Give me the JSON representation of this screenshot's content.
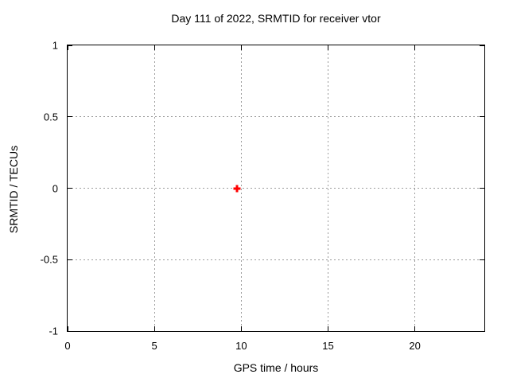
{
  "window": {
    "background": "#ffffff"
  },
  "chart_data": {
    "type": "scatter",
    "title": "Day 111 of 2022, SRMTID for receiver vtor",
    "xlabel": "GPS time / hours",
    "ylabel": "SRMTID / TECUs",
    "xlim": [
      0,
      24
    ],
    "ylim": [
      -1,
      1
    ],
    "xticks": [
      {
        "value": 0,
        "label": "0"
      },
      {
        "value": 5,
        "label": "5"
      },
      {
        "value": 10,
        "label": "10"
      },
      {
        "value": 15,
        "label": "15"
      },
      {
        "value": 20,
        "label": "20"
      }
    ],
    "yticks": [
      {
        "value": -1,
        "label": "-1"
      },
      {
        "value": -0.5,
        "label": "-0.5"
      },
      {
        "value": 0,
        "label": "0"
      },
      {
        "value": 0.5,
        "label": "0.5"
      },
      {
        "value": 1,
        "label": "1"
      }
    ],
    "grid": true,
    "legend_position": "none",
    "series": [
      {
        "name": "SRMTID",
        "marker": "plus",
        "color": "#ff0000",
        "points": [
          {
            "x": 9.75,
            "y": 0
          }
        ]
      }
    ],
    "colors": {
      "border": "#000000",
      "grid": "#9c9c9c",
      "text": "#000000",
      "background": "#ffffff"
    }
  }
}
